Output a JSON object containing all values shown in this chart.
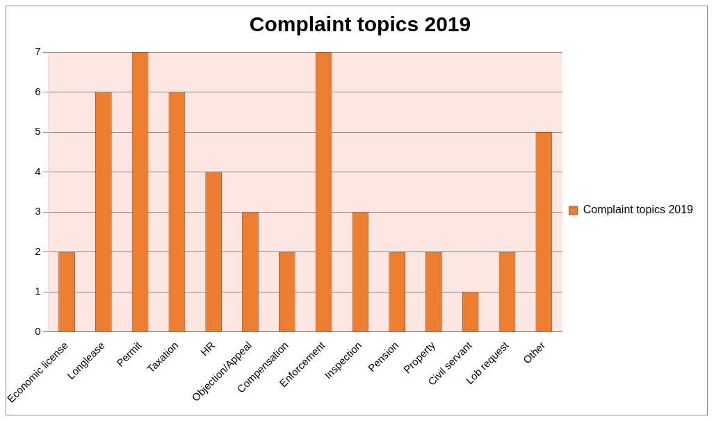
{
  "chart_data": {
    "type": "bar",
    "title": "Complaint topics 2019",
    "categories": [
      "Economic license",
      "Longlease",
      "Permit",
      "Taxation",
      "HR",
      "Objection/Appeal",
      "Compensation",
      "Enforcement",
      "Inspection",
      "Pension",
      "Property",
      "Civil servant",
      "Lob request",
      "Other"
    ],
    "series": [
      {
        "name": "Complaint topics 2019",
        "color": "#ed7d31",
        "values": [
          2,
          6,
          7,
          6,
          4,
          3,
          2,
          7,
          3,
          2,
          2,
          1,
          2,
          5
        ]
      }
    ],
    "ylim": [
      0,
      7
    ],
    "yticks": [
      0,
      1,
      2,
      3,
      4,
      5,
      6,
      7
    ],
    "grid": "y",
    "legend": "right"
  }
}
